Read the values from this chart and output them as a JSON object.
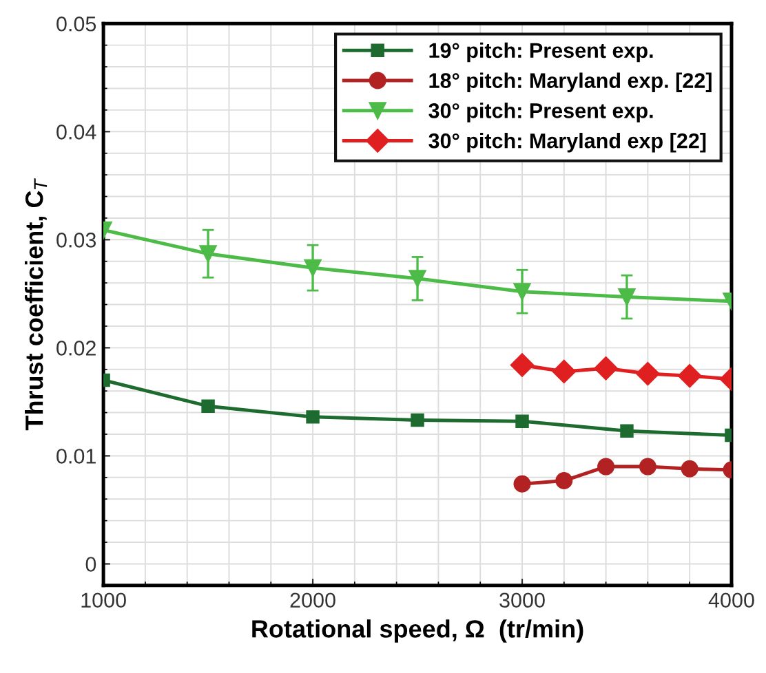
{
  "chart_data": {
    "type": "line",
    "xlabel": "Rotational speed, Ω  (tr/min)",
    "ylabel": "Thrust coefficient, C$_{T}$",
    "xlim": [
      1000,
      4000
    ],
    "xticks": [
      1000,
      2000,
      3000,
      4000
    ],
    "ylim": [
      -0.002,
      0.05
    ],
    "yticks": [
      0,
      0.01,
      0.02,
      0.03,
      0.04,
      0.05
    ],
    "grid": true,
    "legend": "top right",
    "series": [
      {
        "name": "19° pitch: Present exp.",
        "color": "#1e6b30",
        "marker": "square",
        "x": [
          1000,
          1500,
          2000,
          2500,
          3000,
          3500,
          4000
        ],
        "values": [
          0.017,
          0.0146,
          0.0136,
          0.0133,
          0.0132,
          0.0123,
          0.0119
        ]
      },
      {
        "name": "18° pitch: Maryland exp. [22]",
        "color": "#b22222",
        "marker": "circle",
        "x": [
          3000,
          3200,
          3400,
          3600,
          3800,
          4000
        ],
        "values": [
          0.0074,
          0.0077,
          0.009,
          0.009,
          0.0088,
          0.0087
        ]
      },
      {
        "name": "30° pitch: Present exp.",
        "color": "#4cbb47",
        "marker": "triangle",
        "x": [
          1000,
          1500,
          2000,
          2500,
          3000,
          3500,
          4000
        ],
        "values": [
          0.0309,
          0.0287,
          0.0274,
          0.0264,
          0.0252,
          0.0247,
          0.0243
        ],
        "errors": [
          null,
          0.0022,
          0.0021,
          0.002,
          0.002,
          0.002,
          null
        ]
      },
      {
        "name": "30° pitch: Maryland exp [22]",
        "color": "#e02020",
        "marker": "diamond",
        "x": [
          3000,
          3200,
          3400,
          3600,
          3800,
          4000
        ],
        "values": [
          0.0184,
          0.0178,
          0.0181,
          0.0176,
          0.0174,
          0.0171
        ]
      }
    ]
  }
}
